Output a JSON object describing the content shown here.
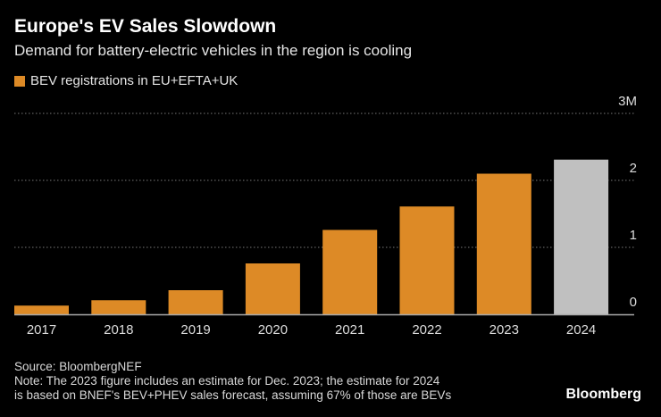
{
  "chart_data": {
    "type": "bar",
    "title": "Europe's EV Sales Slowdown",
    "subtitle": "Demand for battery-electric vehicles in the region is cooling",
    "legend": [
      {
        "name": "BEV registrations in EU+EFTA+UK",
        "color": "#dd8a26"
      }
    ],
    "legend_placement": "top-left",
    "categories": [
      "2017",
      "2018",
      "2019",
      "2020",
      "2021",
      "2022",
      "2023",
      "2024"
    ],
    "series": [
      {
        "name": "BEV registrations in EU+EFTA+UK",
        "values": [
          0.13,
          0.21,
          0.36,
          0.76,
          1.26,
          1.61,
          2.1,
          2.31
        ]
      }
    ],
    "bar_colors": [
      "#dd8a26",
      "#dd8a26",
      "#dd8a26",
      "#dd8a26",
      "#dd8a26",
      "#dd8a26",
      "#dd8a26",
      "#c0c0c0"
    ],
    "ylim": [
      0,
      3
    ],
    "yticks": [
      0,
      1,
      2,
      3
    ],
    "ytick_labels": [
      "0",
      "1",
      "2",
      "3M"
    ],
    "y_axis_side": "right",
    "grid": "horizontal dotted",
    "xlabel": "",
    "ylabel": ""
  },
  "footer": {
    "source": "Source: BloombergNEF",
    "note_line1": "Note: The 2023 figure includes an estimate for Dec. 2023; the estimate for 2024",
    "note_line2": "is based on BNEF's BEV+PHEV sales forecast, assuming 67% of those are BEVs",
    "brand": "Bloomberg"
  }
}
